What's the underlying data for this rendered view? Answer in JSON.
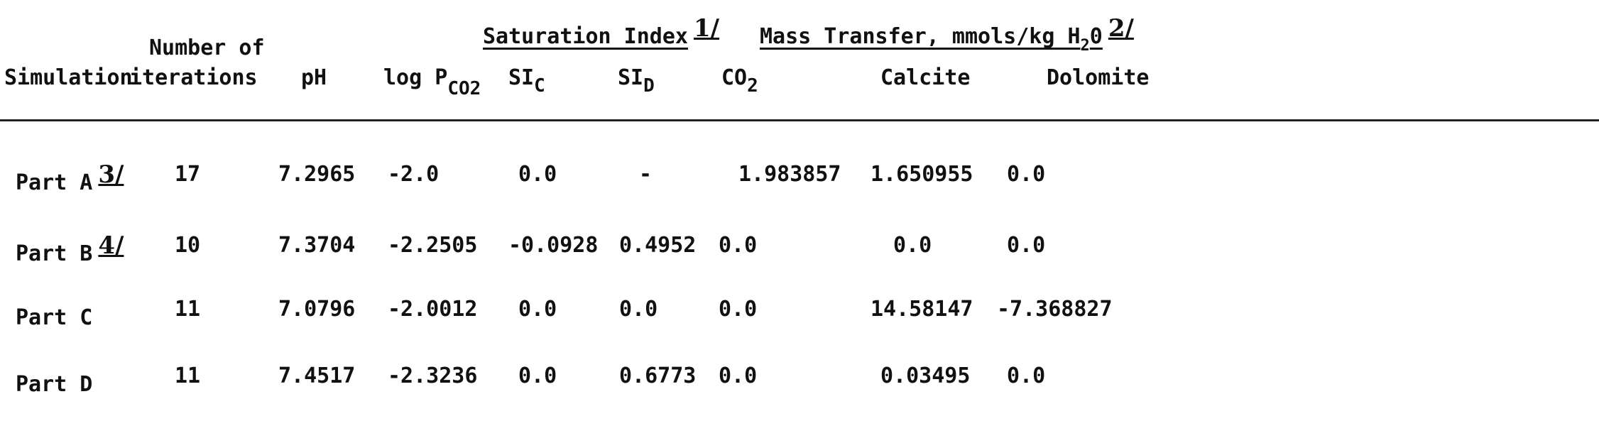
{
  "group_headers": {
    "saturation_index": "Saturation Index",
    "saturation_index_note": "1/",
    "mass_transfer_prefix": "Mass Transfer, mmols/kg H",
    "mass_transfer_sub": "2",
    "mass_transfer_suffix": "0",
    "mass_transfer_note": "2/"
  },
  "columns": {
    "simulation": "Simulation",
    "iterations_line1": "Number of",
    "iterations_line2": "iterations",
    "ph": "pH",
    "logp_prefix": "log P",
    "logp_sub": "CO2",
    "sic_prefix": "SI",
    "sic_sub": "C",
    "sid_prefix": "SI",
    "sid_sub": "D",
    "co2_prefix": "CO",
    "co2_sub": "2",
    "calcite": "Calcite",
    "dolomite": "Dolomite"
  },
  "rows": [
    {
      "simulation": "Part A",
      "note": "3/",
      "iterations": "17",
      "ph": "7.2965",
      "logp": "-2.0",
      "sic": "0.0",
      "sid": "-",
      "co2": "1.983857",
      "calcite": "1.650955",
      "dolomite": "0.0"
    },
    {
      "simulation": "Part B",
      "note": "4/",
      "iterations": "10",
      "ph": "7.3704",
      "logp": "-2.2505",
      "sic": "-0.0928",
      "sid": "0.4952",
      "co2": "0.0",
      "calcite": "0.0",
      "dolomite": "0.0"
    },
    {
      "simulation": "Part C",
      "note": "",
      "iterations": "11",
      "ph": "7.0796",
      "logp": "-2.0012",
      "sic": "0.0",
      "sid": "0.0",
      "co2": "0.0",
      "calcite": "14.58147",
      "dolomite": "-7.368827"
    },
    {
      "simulation": "Part D",
      "note": "",
      "iterations": "11",
      "ph": "7.4517",
      "logp": "-2.3236",
      "sic": "0.0",
      "sid": "0.6773",
      "co2": "0.0",
      "calcite": "0.03495",
      "dolomite": "0.0"
    }
  ]
}
